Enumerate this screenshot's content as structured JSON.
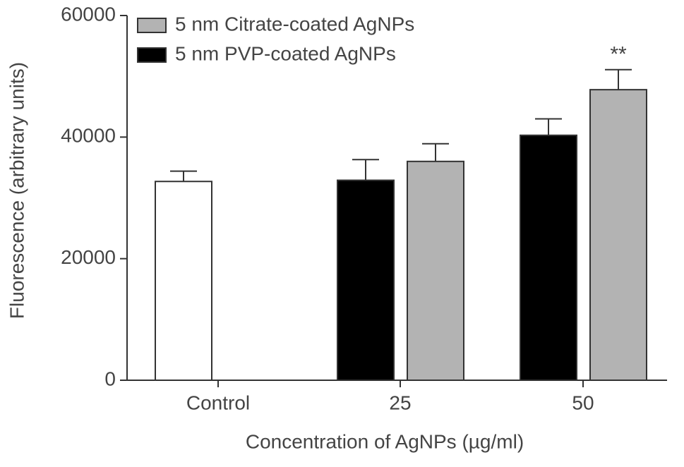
{
  "chart_data": {
    "type": "bar",
    "y_label": "Fluorescence (arbitrary units)",
    "x_label": "Concentration of AgNPs (µg/ml)",
    "categories": [
      "Control",
      "25",
      "50"
    ],
    "control": {
      "value": 32700,
      "error": 1700,
      "color": "#ffffff"
    },
    "series": [
      {
        "name": "5 nm Citrate-coated AgNPs",
        "color": "#b3b3b3",
        "values": [
          null,
          36000,
          47800
        ],
        "errors": [
          null,
          2900,
          3300
        ]
      },
      {
        "name": "5 nm PVP-coated AgNPs",
        "color": "#000000",
        "values": [
          null,
          32900,
          40300
        ],
        "errors": [
          null,
          3400,
          2700
        ]
      }
    ],
    "annotation": "**",
    "ylim": [
      0,
      60000
    ],
    "yticks": [
      0,
      20000,
      40000,
      60000
    ],
    "legend": "upper-left"
  }
}
